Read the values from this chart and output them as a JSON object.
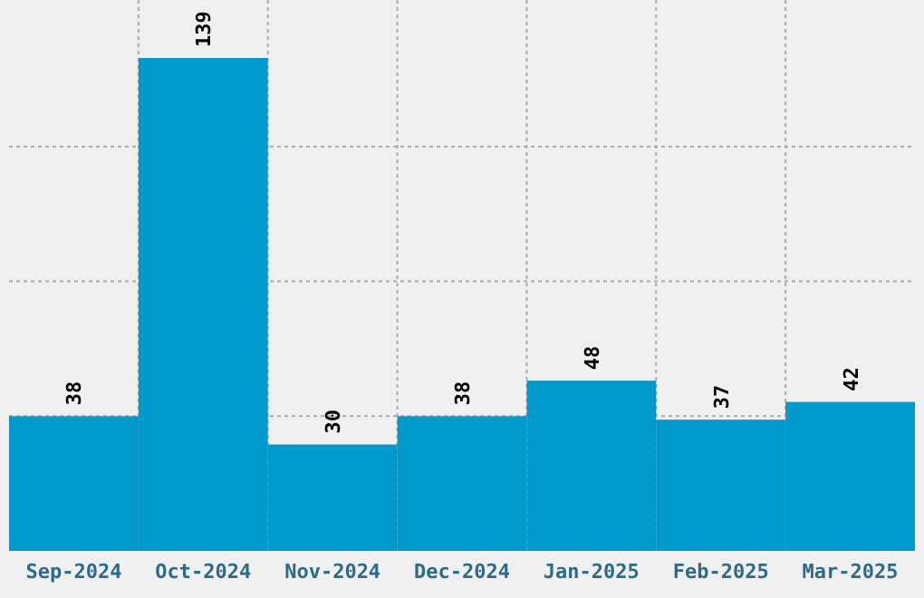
{
  "chart_data": {
    "type": "bar",
    "categories": [
      "Sep-2024",
      "Oct-2024",
      "Nov-2024",
      "Dec-2024",
      "Jan-2025",
      "Feb-2025",
      "Mar-2025"
    ],
    "values": [
      38,
      139,
      30,
      38,
      48,
      37,
      42
    ],
    "color": "#0099cc",
    "yticks": [
      {
        "value": 38,
        "label": null
      },
      {
        "value": 76,
        "label": null
      },
      {
        "value": 114,
        "label": null
      }
    ],
    "tick_labels": "x",
    "grid": true,
    "data_labels": true
  }
}
